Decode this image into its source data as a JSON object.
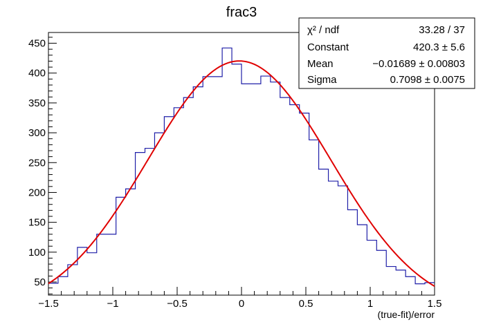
{
  "chart_data": {
    "type": "histogram",
    "title": "frac3",
    "xlabel": "(true-fit)/error",
    "ylabel": "",
    "xlim": [
      -1.5,
      1.5
    ],
    "ylim": [
      28,
      468
    ],
    "x_ticks": [
      -1.5,
      -1,
      -0.5,
      0,
      0.5,
      1,
      1.5
    ],
    "x_tick_labels": [
      "−1.5",
      "−1",
      "−0.5",
      "0",
      "0.5",
      "1",
      "1.5"
    ],
    "y_ticks": [
      50,
      100,
      150,
      200,
      250,
      300,
      350,
      400,
      450
    ],
    "y_tick_labels": [
      "50",
      "100",
      "150",
      "200",
      "250",
      "300",
      "350",
      "400",
      "450"
    ],
    "bin_edges_start": -1.5,
    "bin_width": 0.075,
    "histogram_counts": [
      48,
      59,
      79,
      108,
      99,
      130,
      130,
      192,
      206,
      267,
      274,
      300,
      327,
      342,
      359,
      377,
      394,
      394,
      442,
      415,
      382,
      382,
      395,
      385,
      359,
      347,
      333,
      288,
      239,
      219,
      211,
      171,
      146,
      120,
      103,
      76,
      70,
      59,
      47,
      49
    ],
    "histogram_color": "#1f1fa8",
    "fit": {
      "function": "gaus",
      "constant": 420.3,
      "mean": -0.01689,
      "sigma": 0.7098,
      "color": "#e00000"
    },
    "stats_box": {
      "rows": [
        {
          "label": "χ² / ndf",
          "value": "33.28 / 37"
        },
        {
          "label": "Constant",
          "value": "420.3 ± 5.6"
        },
        {
          "label": "Mean",
          "value": "−0.01689 ± 0.00803"
        },
        {
          "label": "Sigma",
          "value": "0.7098 ± 0.0075"
        }
      ]
    }
  }
}
